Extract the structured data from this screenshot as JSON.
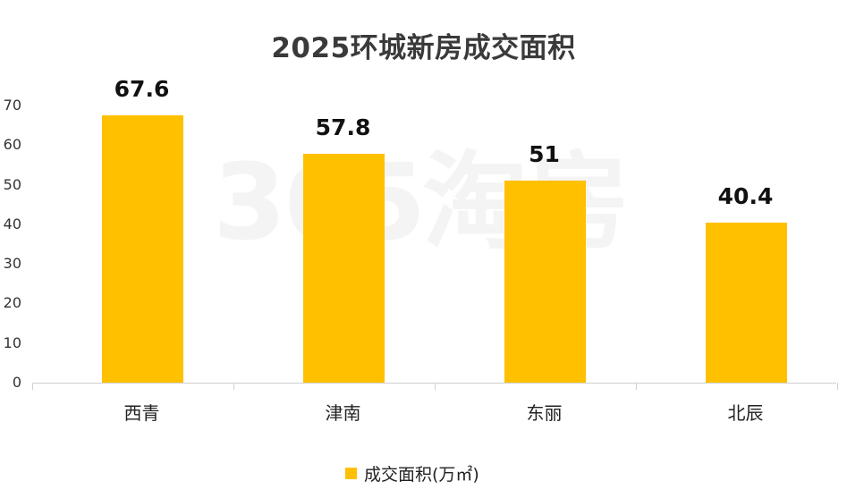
{
  "chart_data": {
    "type": "bar",
    "title": "2025环城新房成交面积",
    "categories": [
      "西青",
      "津南",
      "东丽",
      "北辰"
    ],
    "values": [
      67.6,
      57.8,
      51,
      40.4
    ],
    "value_labels": [
      "67.6",
      "57.8",
      "51",
      "40.4"
    ],
    "xlabel": "",
    "ylabel": "",
    "ylim": [
      0,
      70
    ],
    "yticks": [
      "0",
      "10",
      "20",
      "30",
      "40",
      "50",
      "60",
      "70"
    ],
    "grid": false,
    "legend": {
      "position": "bottom",
      "entries": [
        "成交面积(万㎡)"
      ]
    },
    "series": [
      {
        "name": "成交面积(万㎡)",
        "values": [
          67.6,
          57.8,
          51,
          40.4
        ],
        "color": "#FFC000"
      }
    ]
  },
  "watermark": "365淘房",
  "colors": {
    "bar": "#FFC000",
    "title": "#3a3a3a",
    "axis": "#d0d0d0"
  }
}
